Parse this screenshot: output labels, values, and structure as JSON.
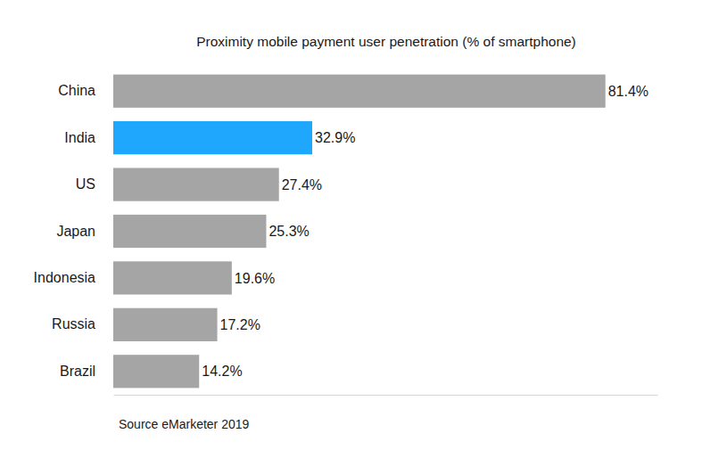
{
  "chart_data": {
    "type": "bar",
    "orientation": "horizontal",
    "title": "Proximity mobile payment user penetration (% of smartphone)",
    "categories": [
      "China",
      "India",
      "US",
      "Japan",
      "Indonesia",
      "Russia",
      "Brazil"
    ],
    "values": [
      81.4,
      32.9,
      27.4,
      25.3,
      19.6,
      17.2,
      14.2
    ],
    "value_labels": [
      "81.4%",
      "32.9%",
      "27.4%",
      "25.3%",
      "19.6%",
      "17.2%",
      "14.2%"
    ],
    "colors": [
      "#a5a5a5",
      "#1ea7fd",
      "#a5a5a5",
      "#a5a5a5",
      "#a5a5a5",
      "#a5a5a5",
      "#a5a5a5"
    ],
    "data_labels": true,
    "tick_labels": "y",
    "xlim": [
      0,
      90
    ],
    "xticks": [],
    "annotations": [
      "Source eMarketer 2019"
    ]
  }
}
